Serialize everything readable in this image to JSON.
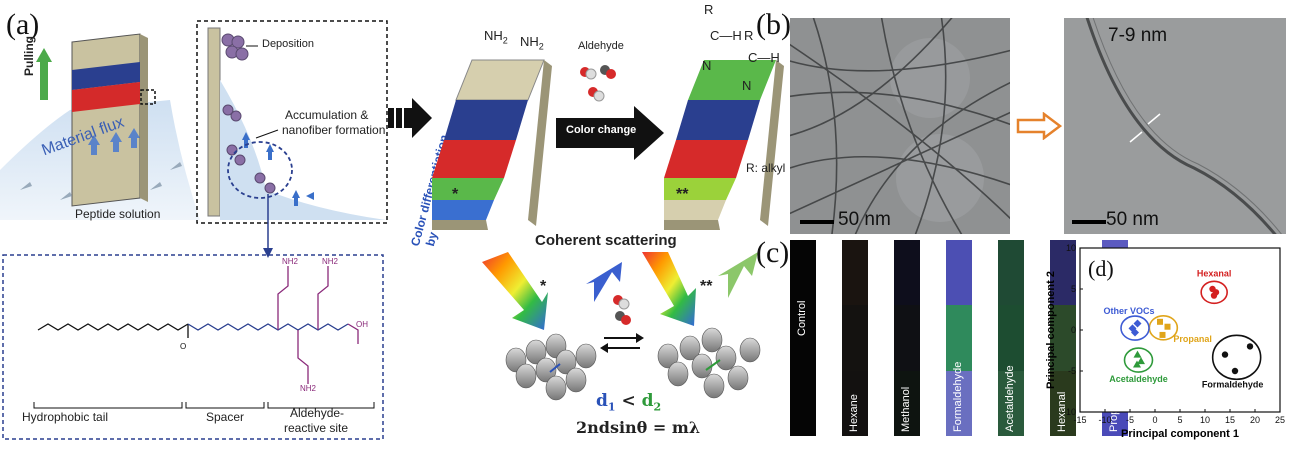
{
  "panel_labels": {
    "a": "(a)",
    "b": "(b)",
    "c": "(c)",
    "d": "(d)"
  },
  "panel_a": {
    "pulling": "Pulling",
    "material_flux": "Material flux",
    "peptide_solution": "Peptide solution",
    "deposition": "Deposition",
    "accumulation": "Accumulation &",
    "nanofiber": "nanofiber formation",
    "color_diff_1": "Color differentiation",
    "color_diff_2": "by controlled deposition",
    "nh2": "NH",
    "nh2_sub": "2",
    "aldehyde": "Aldehyde",
    "color_change": "Color change",
    "r_alkyl": "R: alkyl",
    "r": "R",
    "c_h": "C—H",
    "n": "N",
    "star1": "*",
    "star2": "**",
    "coherent": "Coherent scattering",
    "d_relation": {
      "d1": "d",
      "d1_sub": "1",
      "lt": " < ",
      "d2": "d",
      "d2_sub": "2"
    },
    "bragg": "2ndsinθ = mλ",
    "hydrophobic_tail": "Hydrophobic tail",
    "spacer": "Spacer",
    "aldehyde_reactive_1": "Aldehyde-",
    "aldehyde_reactive_2": "reactive site",
    "chem_nh2": "NH2",
    "chem_oh": "OH",
    "chem_o": "O",
    "chem_n": "N",
    "chem_h": "H"
  },
  "panel_b": {
    "scale_left": "50 nm",
    "scale_right": "50 nm",
    "fiber_width": "7-9 nm"
  },
  "panel_c": {
    "strips": [
      {
        "label": "Control",
        "colors": [
          "#050505",
          "#050505",
          "#050505"
        ]
      },
      {
        "label": "Hexane",
        "colors": [
          "#1a1410",
          "#141210",
          "#131110"
        ]
      },
      {
        "label": "Methanol",
        "colors": [
          "#0e0e1c",
          "#0f1014",
          "#0e1410"
        ]
      },
      {
        "label": "Formaldehyde",
        "colors": [
          "#4c4fb3",
          "#2f8a5c",
          "#6a6fc0"
        ]
      },
      {
        "label": "Acetaldehyde",
        "colors": [
          "#1f4a34",
          "#1d4d31",
          "#2a5a3c"
        ]
      },
      {
        "label": "Hexanal",
        "colors": [
          "#2b2a66",
          "#2c4a2a",
          "#2a3a1d"
        ]
      },
      {
        "label": "Propanal",
        "colors": [
          "#5b5ac0",
          "#3f9a3e",
          "#4a4ab8"
        ]
      }
    ]
  },
  "chart_data": {
    "type": "scatter",
    "xlabel": "Principal component 1",
    "ylabel": "Principal component 2",
    "xlim": [
      -15,
      25
    ],
    "ylim": [
      -10,
      10
    ],
    "xticks": [
      -15,
      -10,
      -5,
      0,
      5,
      10,
      15,
      20,
      25
    ],
    "yticks": [
      -10,
      -5,
      0,
      5,
      10
    ],
    "groups": [
      {
        "name": "Hexanal",
        "color": "#d42020",
        "marker": "circle",
        "points": [
          [
            11.5,
            5.0
          ],
          [
            12.2,
            4.6
          ],
          [
            11.8,
            4.2
          ]
        ]
      },
      {
        "name": "Propanal",
        "color": "#e0a51a",
        "marker": "square",
        "points": [
          [
            1.0,
            1.0
          ],
          [
            2.5,
            0.4
          ],
          [
            1.5,
            -0.6
          ]
        ]
      },
      {
        "name": "Other VOCs",
        "color": "#3d5bd4",
        "marker": "diamond",
        "points": [
          [
            -4.5,
            0.2
          ],
          [
            -3.5,
            0.8
          ],
          [
            -4.0,
            -0.3
          ]
        ]
      },
      {
        "name": "Acetaldehyde",
        "color": "#2e9a3a",
        "marker": "triangle",
        "points": [
          [
            -3.5,
            -3.0
          ],
          [
            -2.8,
            -3.8
          ],
          [
            -3.6,
            -4.2
          ]
        ]
      },
      {
        "name": "Formaldehyde",
        "color": "#111111",
        "marker": "circle",
        "points": [
          [
            14.0,
            -3.0
          ],
          [
            16.0,
            -5.0
          ],
          [
            19.0,
            -2.0
          ]
        ]
      }
    ]
  }
}
